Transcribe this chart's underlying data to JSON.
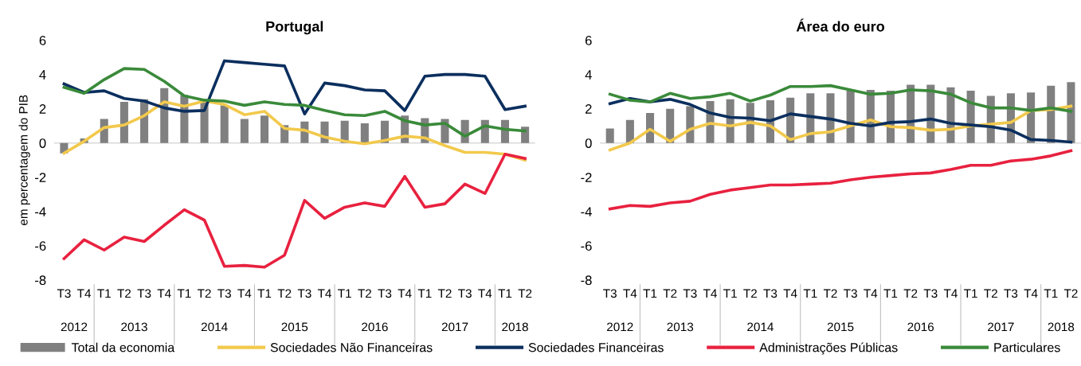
{
  "chart_data": [
    {
      "type": "bar",
      "title": "Portugal",
      "ylabel": "em percentagem do PIB",
      "legend": "bottom",
      "categories": [
        "T3",
        "T4",
        "T1",
        "T2",
        "T3",
        "T4",
        "T1",
        "T2",
        "T3",
        "T4",
        "T1",
        "T2",
        "T3",
        "T4",
        "T1",
        "T2",
        "T3",
        "T4",
        "T1",
        "T2",
        "T3",
        "T4",
        "T1",
        "T2"
      ],
      "annotations": [
        "2012",
        "2013",
        "2014",
        "2015",
        "2016",
        "2017",
        "2018"
      ],
      "ylim": [
        -8,
        6
      ],
      "yticks": [
        -8,
        -6,
        -4,
        -2,
        0,
        2,
        4,
        6
      ],
      "ref_lines": [
        {
          "axis": "y",
          "value": 0,
          "color": "#d9d9d9"
        }
      ],
      "series": [
        {
          "name": "Total da economia",
          "color": "#808080",
          "values": [
            -0.6,
            0.27,
            1.4,
            2.4,
            2.55,
            3.2,
            2.8,
            2.4,
            2.2,
            1.4,
            1.6,
            1.05,
            1.25,
            1.25,
            1.3,
            1.15,
            1.3,
            1.6,
            1.45,
            1.4,
            1.35,
            1.35,
            1.35,
            0.95
          ]
        },
        {
          "name": "Sociedades Não Financeiras",
          "type": "line",
          "color": "#f2c94c",
          "values": [
            -0.6,
            0.1,
            0.9,
            1.05,
            1.6,
            2.4,
            2.15,
            2.45,
            2.25,
            1.65,
            1.85,
            0.85,
            0.75,
            0.35,
            0.1,
            -0.05,
            0.15,
            0.4,
            0.3,
            -0.15,
            -0.55,
            -0.55,
            -0.65,
            -1.0
          ]
        },
        {
          "name": "Sociedades Financeiras",
          "type": "line",
          "color": "#0b2f5e",
          "values": [
            3.45,
            2.95,
            3.05,
            2.6,
            2.45,
            2.05,
            1.85,
            1.9,
            4.8,
            4.7,
            4.6,
            4.5,
            1.7,
            3.5,
            3.35,
            3.1,
            3.05,
            1.9,
            3.9,
            4.0,
            4.0,
            3.9,
            1.95,
            2.15
          ]
        },
        {
          "name": "Administrações Públicas",
          "type": "line",
          "color": "#e8213f",
          "values": [
            -6.75,
            -5.65,
            -6.25,
            -5.5,
            -5.75,
            -4.8,
            -3.9,
            -4.5,
            -7.2,
            -7.15,
            -7.25,
            -6.55,
            -3.35,
            -4.4,
            -3.75,
            -3.5,
            -3.7,
            -1.95,
            -3.75,
            -3.55,
            -2.4,
            -2.95,
            -0.65,
            -0.9
          ]
        },
        {
          "name": "Particulares",
          "type": "line",
          "color": "#3a8a3a",
          "values": [
            3.25,
            2.9,
            3.7,
            4.35,
            4.3,
            3.6,
            2.75,
            2.5,
            2.45,
            2.2,
            2.4,
            2.25,
            2.2,
            1.9,
            1.65,
            1.6,
            1.85,
            1.3,
            1.05,
            1.15,
            0.4,
            1.0,
            0.8,
            0.7
          ]
        }
      ]
    },
    {
      "type": "bar",
      "title": "Área do euro",
      "categories": [
        "T3",
        "T4",
        "T1",
        "T2",
        "T3",
        "T4",
        "T1",
        "T2",
        "T3",
        "T4",
        "T1",
        "T2",
        "T3",
        "T4",
        "T1",
        "T2",
        "T3",
        "T4",
        "T1",
        "T2",
        "T3",
        "T4",
        "T1",
        "T2"
      ],
      "annotations": [
        "2012",
        "2013",
        "2014",
        "2015",
        "2016",
        "2017",
        "2018"
      ],
      "ylim": [
        -8,
        6
      ],
      "yticks": [
        -8,
        -6,
        -4,
        -2,
        0,
        2,
        4,
        6
      ],
      "ref_lines": [
        {
          "axis": "y",
          "value": 0,
          "color": "#d9d9d9"
        }
      ],
      "series": [
        {
          "color": "#808080",
          "values": [
            0.85,
            1.35,
            1.75,
            2.0,
            2.15,
            2.45,
            2.55,
            2.35,
            2.5,
            2.65,
            2.9,
            2.9,
            3.05,
            3.1,
            3.05,
            3.4,
            3.4,
            3.25,
            3.05,
            2.75,
            2.9,
            2.95,
            3.35,
            3.55
          ]
        },
        {
          "type": "line",
          "color": "#f2c94c",
          "values": [
            -0.4,
            0.0,
            0.8,
            0.1,
            0.8,
            1.15,
            1.0,
            1.2,
            1.0,
            0.2,
            0.55,
            0.65,
            1.0,
            1.35,
            0.95,
            0.9,
            0.75,
            0.8,
            1.0,
            1.1,
            1.2,
            1.9,
            1.95,
            2.15
          ]
        },
        {
          "type": "line",
          "color": "#0b2f5e",
          "values": [
            2.3,
            2.6,
            2.4,
            2.55,
            2.25,
            1.75,
            1.5,
            1.45,
            1.3,
            1.7,
            1.55,
            1.4,
            1.15,
            1.0,
            1.2,
            1.25,
            1.4,
            1.15,
            1.05,
            0.95,
            0.75,
            0.2,
            0.15,
            0.05
          ]
        },
        {
          "type": "line",
          "color": "#e8213f",
          "values": [
            -3.85,
            -3.65,
            -3.7,
            -3.5,
            -3.4,
            -3.0,
            -2.75,
            -2.6,
            -2.45,
            -2.45,
            -2.4,
            -2.35,
            -2.15,
            -2.0,
            -1.9,
            -1.8,
            -1.75,
            -1.55,
            -1.3,
            -1.3,
            -1.05,
            -0.95,
            -0.75,
            -0.45
          ]
        },
        {
          "type": "line",
          "color": "#3a8a3a",
          "values": [
            2.85,
            2.5,
            2.4,
            2.9,
            2.6,
            2.7,
            2.9,
            2.45,
            2.8,
            3.3,
            3.3,
            3.35,
            3.1,
            2.85,
            2.9,
            3.1,
            3.05,
            2.85,
            2.35,
            2.05,
            2.05,
            1.9,
            2.05,
            1.85
          ]
        }
      ]
    }
  ]
}
